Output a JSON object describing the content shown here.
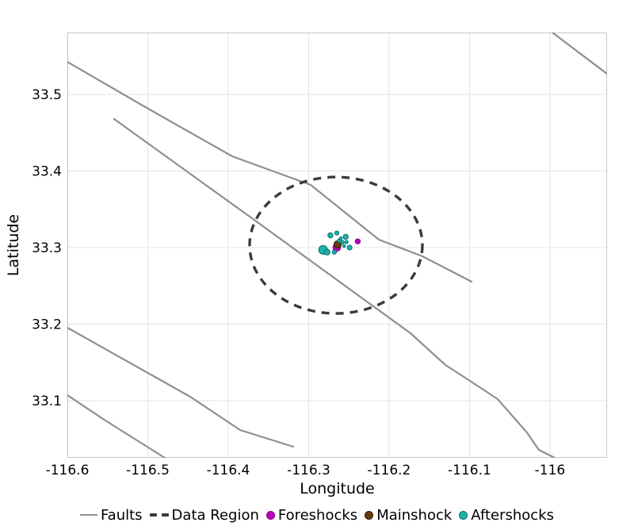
{
  "chart_data": {
    "type": "scatter",
    "title": "",
    "xlabel": "Longitude",
    "ylabel": "Latitude",
    "xlim": [
      -116.6,
      -115.929
    ],
    "ylim": [
      33.0254,
      33.5808
    ],
    "grid": true,
    "legend_position": "bottom",
    "xticks": {
      "values": [
        -116.6,
        -116.5,
        -116.4,
        -116.3,
        -116.2,
        -116.1,
        -116.0
      ],
      "labels": [
        "-116.6",
        "-116.5",
        "-116.4",
        "-116.3",
        "-116.2",
        "-116.1",
        "-116"
      ]
    },
    "yticks": {
      "values": [
        33.5,
        33.4,
        33.3,
        33.2,
        33.1
      ],
      "labels": [
        "33.5",
        "33.4",
        "33.3",
        "33.2",
        "33.1"
      ]
    },
    "colors": {
      "grid": "#e4e4e4",
      "frame": "#c8c8c8",
      "faults": "#8f8f8f",
      "data_region": "#3b3b3b",
      "foreshocks": "#bf00bf",
      "mainshock": "#6b3a10",
      "aftershocks": "#20b2aa"
    },
    "series": [
      {
        "name": "Faults",
        "type": "line",
        "color": "#8f8f8f",
        "stroke_width": 2.2,
        "lines": [
          [
            [
              -116.6,
              33.5425
            ],
            [
              -116.5064,
              33.4855
            ],
            [
              -116.3951,
              33.4192
            ],
            [
              -116.2975,
              33.3819
            ],
            [
              -116.2128,
              33.3104
            ],
            [
              -116.1586,
              33.2886
            ],
            [
              -116.0975,
              33.2554
            ]
          ],
          [
            [
              -116.5419,
              33.4679
            ],
            [
              -116.3665,
              33.3352
            ],
            [
              -116.1734,
              33.1881
            ],
            [
              -116.13,
              33.1466
            ],
            [
              -116.1025,
              33.128
            ],
            [
              -116.0651,
              33.1021
            ],
            [
              -116.0286,
              33.0585
            ],
            [
              -116.0138,
              33.0358
            ],
            [
              -115.9941,
              33.0254
            ]
          ],
          [
            [
              -115.997,
              33.5808
            ],
            [
              -115.9291,
              33.5269
            ]
          ],
          [
            [
              -116.6,
              33.1953
            ],
            [
              -116.4473,
              33.1052
            ],
            [
              -116.3852,
              33.0617
            ],
            [
              -116.3192,
              33.0399
            ]
          ],
          [
            [
              -116.6,
              33.1073
            ],
            [
              -116.5527,
              33.0741
            ],
            [
              -116.4788,
              33.0254
            ]
          ]
        ]
      },
      {
        "name": "Data Region",
        "type": "ellipse",
        "color": "#3b3b3b",
        "stroke_width": 3.4,
        "dash": "10 8",
        "center": [
          -116.266,
          33.303
        ],
        "rx_deg": 0.1074,
        "ry_deg": 0.0891
      },
      {
        "name": "Foreshocks",
        "type": "scatter",
        "fill": "#bf00bf",
        "stroke": "#800080",
        "points": [
          [
            -116.239,
            33.308,
            3.2
          ],
          [
            -116.265,
            33.3,
            4.8
          ]
        ]
      },
      {
        "name": "Mainshock",
        "type": "scatter",
        "fill": "#6b3a10",
        "stroke": "#2e1500",
        "points": [
          [
            -116.264,
            33.304,
            4.6
          ]
        ]
      },
      {
        "name": "Aftershocks",
        "type": "scatter",
        "fill": "#20b2aa",
        "stroke": "#00716b",
        "points": [
          [
            -116.273,
            33.316,
            3.2
          ],
          [
            -116.265,
            33.319,
            2.6
          ],
          [
            -116.254,
            33.314,
            3.2
          ],
          [
            -116.262,
            33.309,
            2.3
          ],
          [
            -116.253,
            33.307,
            2.0
          ],
          [
            -116.249,
            33.3,
            3.0
          ],
          [
            -116.256,
            33.302,
            1.8
          ],
          [
            -116.282,
            33.297,
            5.5
          ],
          [
            -116.277,
            33.294,
            3.6
          ],
          [
            -116.268,
            33.294,
            2.6
          ],
          [
            -116.258,
            33.307,
            2.2
          ],
          [
            -116.26,
            33.312,
            1.8
          ]
        ]
      }
    ]
  }
}
